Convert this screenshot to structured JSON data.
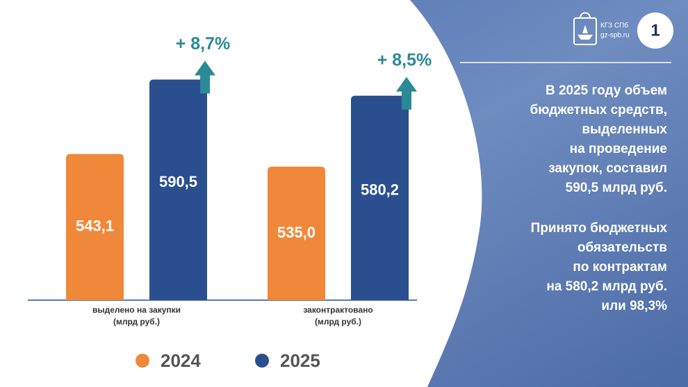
{
  "chart_data": {
    "type": "bar",
    "categories": [
      [
        "выделено на закупки",
        "(млрд руб.)"
      ],
      [
        "законтрактовано",
        "(млрд руб.)"
      ]
    ],
    "series": [
      {
        "name": "2024",
        "color": "#f0883a",
        "values": [
          543.1,
          535.0
        ],
        "value_labels": [
          "543,1",
          "535,0"
        ]
      },
      {
        "name": "2025",
        "color": "#2a4f8f",
        "values": [
          590.5,
          580.2
        ],
        "value_labels": [
          "590,5",
          "580,2"
        ]
      }
    ],
    "annotations": [
      "+ 8,7%",
      "+ 8,5%"
    ],
    "ylim": [
      450,
      600
    ]
  },
  "side_panel": {
    "logo": [
      "КГЗ СПб",
      "gz-spb.ru"
    ],
    "page_number": "1",
    "paragraphs": [
      [
        "В 2025 году объем",
        "бюджетных средств,",
        "выделенных",
        "на проведение",
        "закупок, составил",
        "590,5 млрд руб."
      ],
      [
        "Принято бюджетных",
        "обязательств",
        "по контрактам",
        "на 580,2 млрд руб.",
        "или 98,3%"
      ]
    ]
  }
}
